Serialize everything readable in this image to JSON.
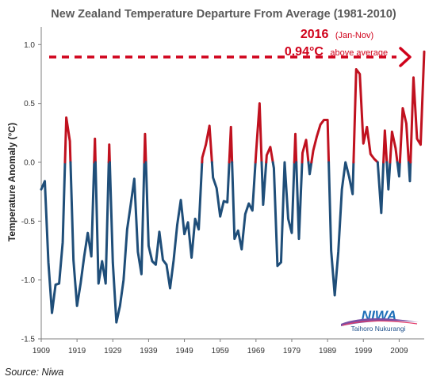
{
  "chart_data": {
    "type": "line",
    "title": "New Zealand Temperature Departure From Average (1981-2010)",
    "ylabel": "Temperature Anomaly (°C)",
    "xlabel": "",
    "ylim": [
      -1.5,
      1.15
    ],
    "xlim": [
      1909,
      2016
    ],
    "yticks": [
      "1.0",
      "0.5",
      "0.0",
      "-0.5",
      "-1.0",
      "-1.5"
    ],
    "ytick_values": [
      1.0,
      0.5,
      0.0,
      -0.5,
      -1.0,
      -1.5
    ],
    "xticks": [
      "1909",
      "1919",
      "1929",
      "1939",
      "1949",
      "1959",
      "1969",
      "1979",
      "1989",
      "1999",
      "2009"
    ],
    "xtick_values": [
      1909,
      1919,
      1929,
      1939,
      1949,
      1959,
      1969,
      1979,
      1989,
      1999,
      2009
    ],
    "grid": false,
    "colors": {
      "positive": "#c0111f",
      "negative": "#1f4e79",
      "annotation": "#d0021b"
    },
    "x": [
      1909,
      1910,
      1911,
      1912,
      1913,
      1914,
      1915,
      1916,
      1917,
      1918,
      1919,
      1920,
      1921,
      1922,
      1923,
      1924,
      1925,
      1926,
      1927,
      1928,
      1929,
      1930,
      1931,
      1932,
      1933,
      1934,
      1935,
      1936,
      1937,
      1938,
      1939,
      1940,
      1941,
      1942,
      1943,
      1944,
      1945,
      1946,
      1947,
      1948,
      1949,
      1950,
      1951,
      1952,
      1953,
      1954,
      1955,
      1956,
      1957,
      1958,
      1959,
      1960,
      1961,
      1962,
      1963,
      1964,
      1965,
      1966,
      1967,
      1968,
      1969,
      1970,
      1971,
      1972,
      1973,
      1974,
      1975,
      1976,
      1977,
      1978,
      1979,
      1980,
      1981,
      1982,
      1983,
      1984,
      1985,
      1986,
      1987,
      1988,
      1989,
      1990,
      1991,
      1992,
      1993,
      1994,
      1995,
      1996,
      1997,
      1998,
      1999,
      2000,
      2001,
      2002,
      2003,
      2004,
      2005,
      2006,
      2007,
      2008,
      2009,
      2010,
      2011,
      2012,
      2013,
      2014,
      2015,
      2016
    ],
    "values": [
      -0.23,
      -0.16,
      -0.85,
      -1.28,
      -1.04,
      -1.03,
      -0.68,
      0.38,
      0.18,
      -0.83,
      -1.22,
      -1.03,
      -0.8,
      -0.6,
      -0.8,
      0.2,
      -1.03,
      -0.84,
      -1.03,
      0.15,
      -0.85,
      -1.36,
      -1.22,
      -1.0,
      -0.57,
      -0.36,
      -0.14,
      -0.76,
      -0.95,
      0.24,
      -0.71,
      -0.84,
      -0.87,
      -0.59,
      -0.83,
      -0.87,
      -1.07,
      -0.83,
      -0.53,
      -0.32,
      -0.61,
      -0.51,
      -0.81,
      -0.48,
      -0.57,
      0.04,
      0.15,
      0.31,
      -0.13,
      -0.22,
      -0.46,
      -0.33,
      -0.34,
      0.3,
      -0.65,
      -0.58,
      -0.74,
      -0.44,
      -0.35,
      -0.41,
      0.07,
      0.5,
      -0.36,
      0.06,
      0.13,
      -0.05,
      -0.88,
      -0.85,
      0.0,
      -0.48,
      -0.6,
      0.24,
      -0.65,
      0.08,
      0.19,
      -0.1,
      0.1,
      0.22,
      0.32,
      0.36,
      0.36,
      -0.75,
      -1.13,
      -0.76,
      -0.23,
      0.0,
      -0.12,
      -0.27,
      0.79,
      0.75,
      0.16,
      0.3,
      0.07,
      0.03,
      0.0,
      -0.43,
      0.27,
      -0.23,
      0.26,
      0.12,
      -0.12,
      0.46,
      0.33,
      -0.16,
      0.72,
      0.2,
      0.15,
      0.94
    ]
  },
  "title": "New Zealand Temperature Departure From Average (1981-2010)",
  "annotation": {
    "year": "2016",
    "period": "(Jan-Nov)",
    "value": "0.94°C",
    "suffix": "above average"
  },
  "logo": {
    "name": "NIWA",
    "subtitle": "Taihoro Nukurangi"
  },
  "source": "Source: Niwa"
}
